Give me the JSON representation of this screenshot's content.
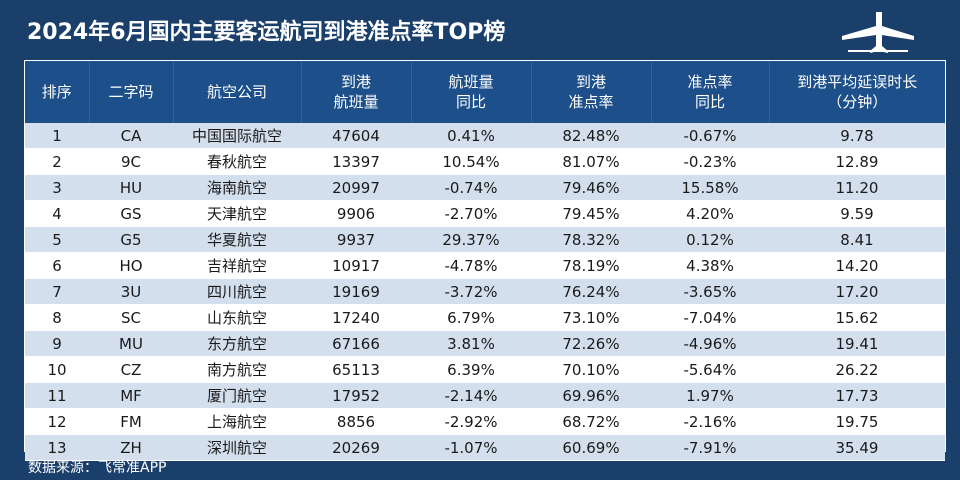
{
  "title": "2024年6月国内主要客运航司到港准点率TOP榜",
  "icons": {
    "plane": "airplane-icon"
  },
  "table": {
    "headers": [
      [
        "排序"
      ],
      [
        "二字码"
      ],
      [
        "航空公司"
      ],
      [
        "到港",
        "航班量"
      ],
      [
        "航班量",
        "同比"
      ],
      [
        "到港",
        "准点率"
      ],
      [
        "准点率",
        "同比"
      ],
      [
        "到港平均延误时长",
        "（分钟）"
      ]
    ],
    "rows": [
      [
        "1",
        "CA",
        "中国国际航空",
        "47604",
        "0.41%",
        "82.48%",
        "-0.67%",
        "9.78"
      ],
      [
        "2",
        "9C",
        "春秋航空",
        "13397",
        "10.54%",
        "81.07%",
        "-0.23%",
        "12.89"
      ],
      [
        "3",
        "HU",
        "海南航空",
        "20997",
        "-0.74%",
        "79.46%",
        "15.58%",
        "11.20"
      ],
      [
        "4",
        "GS",
        "天津航空",
        "9906",
        "-2.70%",
        "79.45%",
        "4.20%",
        "9.59"
      ],
      [
        "5",
        "G5",
        "华夏航空",
        "9937",
        "29.37%",
        "78.32%",
        "0.12%",
        "8.41"
      ],
      [
        "6",
        "HO",
        "吉祥航空",
        "10917",
        "-4.78%",
        "78.19%",
        "4.38%",
        "14.20"
      ],
      [
        "7",
        "3U",
        "四川航空",
        "19169",
        "-3.72%",
        "76.24%",
        "-3.65%",
        "17.20"
      ],
      [
        "8",
        "SC",
        "山东航空",
        "17240",
        "6.79%",
        "73.10%",
        "-7.04%",
        "15.62"
      ],
      [
        "9",
        "MU",
        "东方航空",
        "67166",
        "3.81%",
        "72.26%",
        "-4.96%",
        "19.41"
      ],
      [
        "10",
        "CZ",
        "南方航空",
        "65113",
        "6.39%",
        "70.10%",
        "-5.64%",
        "26.22"
      ],
      [
        "11",
        "MF",
        "厦门航空",
        "17952",
        "-2.14%",
        "69.96%",
        "1.97%",
        "17.73"
      ],
      [
        "12",
        "FM",
        "上海航空",
        "8856",
        "-2.92%",
        "68.72%",
        "-2.16%",
        "19.75"
      ],
      [
        "13",
        "ZH",
        "深圳航空",
        "20269",
        "-1.07%",
        "60.69%",
        "-7.91%",
        "35.49"
      ]
    ]
  },
  "footer": "数据来源：飞常准APP",
  "colors": {
    "background": "#1a3f6b",
    "header": "#1d4f8a",
    "row_alt": "#d4dfee"
  }
}
